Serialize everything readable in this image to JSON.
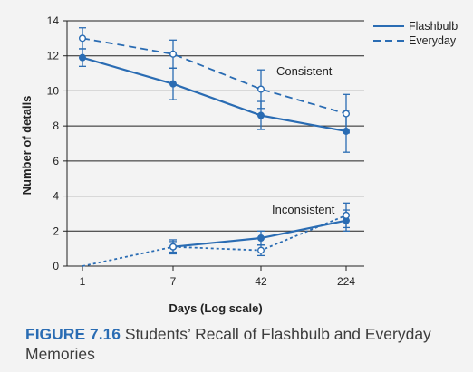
{
  "chart_data": {
    "type": "line",
    "xlabel": "Days (Log scale)",
    "ylabel": "Number of details",
    "ylim": [
      0,
      14
    ],
    "yticks": [
      0,
      2,
      4,
      6,
      8,
      10,
      12,
      14
    ],
    "x_categories": [
      "1",
      "7",
      "42",
      "224"
    ],
    "x_scale": "log",
    "grid": "horizontal",
    "legend_position": "top-right",
    "colors": {
      "line": "#2a6cb3",
      "grid": "#222222"
    },
    "annotations": [
      "Consistent",
      "Inconsistent"
    ],
    "series": [
      {
        "name": "Flashbulb",
        "group": "Consistent",
        "style": "solid",
        "marker": "filled",
        "points": [
          {
            "x": 1,
            "y": 11.9,
            "err": 0.5
          },
          {
            "x": 7,
            "y": 10.4,
            "err": 0.9
          },
          {
            "x": 42,
            "y": 8.6,
            "err": 0.8
          },
          {
            "x": 224,
            "y": 7.7,
            "err": 1.2
          }
        ]
      },
      {
        "name": "Everyday",
        "group": "Consistent",
        "style": "dashed",
        "marker": "open",
        "points": [
          {
            "x": 1,
            "y": 13.0,
            "err": 0.6
          },
          {
            "x": 7,
            "y": 12.1,
            "err": 0.8
          },
          {
            "x": 42,
            "y": 10.1,
            "err": 1.1
          },
          {
            "x": 224,
            "y": 8.7,
            "err": 1.1
          }
        ]
      },
      {
        "name": "Flashbulb",
        "group": "Inconsistent",
        "style": "solid",
        "marker": "filled",
        "points": [
          {
            "x": 7,
            "y": 1.1,
            "err": 0.4
          },
          {
            "x": 42,
            "y": 1.6,
            "err": 0.4
          },
          {
            "x": 224,
            "y": 2.6,
            "err": 0.6
          }
        ]
      },
      {
        "name": "Everyday",
        "group": "Inconsistent",
        "style": "dotted",
        "marker": "open",
        "points": [
          {
            "x": 1,
            "y": 0.0,
            "err": 0
          },
          {
            "x": 7,
            "y": 1.1,
            "err": 0.3
          },
          {
            "x": 42,
            "y": 0.9,
            "err": 0.3
          },
          {
            "x": 224,
            "y": 2.9,
            "err": 0.7
          }
        ]
      }
    ],
    "legend": [
      {
        "label": "Flashbulb",
        "style": "solid"
      },
      {
        "label": "Everyday",
        "style": "dashed"
      }
    ]
  },
  "caption": {
    "figure_number": "FIGURE 7.16",
    "title": "Students’ Recall of Flashbulb and Everyday Memories"
  }
}
